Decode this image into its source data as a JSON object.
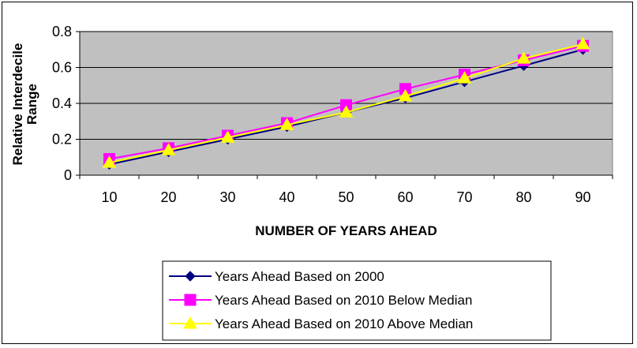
{
  "chart_data": {
    "type": "line",
    "xlabel": "NUMBER OF YEARS AHEAD",
    "ylabel": "Relative Interdecile Range",
    "categories": [
      "10",
      "20",
      "30",
      "40",
      "50",
      "60",
      "70",
      "80",
      "90"
    ],
    "ylim": [
      0,
      0.8
    ],
    "yticks": [
      0,
      0.2,
      0.4,
      0.6,
      0.8
    ],
    "ytick_labels": [
      "0",
      "0.2",
      "0.4",
      "0.6",
      "0.8"
    ],
    "plot_background": "#c0c0c0",
    "grid": "horizontal",
    "legend_position": "bottom",
    "series": [
      {
        "name": "Years Ahead Based on 2000",
        "color": "#000080",
        "marker": "diamond",
        "values": [
          0.06,
          0.13,
          0.2,
          0.27,
          0.35,
          0.43,
          0.52,
          0.61,
          0.7
        ]
      },
      {
        "name": "Years Ahead Based on 2010 Below Median",
        "color": "#ff00ff",
        "marker": "square",
        "values": [
          0.09,
          0.15,
          0.22,
          0.29,
          0.39,
          0.48,
          0.56,
          0.64,
          0.72
        ]
      },
      {
        "name": "Years Ahead Based on 2010 Above Median",
        "color": "#ffff00",
        "marker": "triangle",
        "values": [
          0.07,
          0.14,
          0.21,
          0.28,
          0.35,
          0.44,
          0.54,
          0.65,
          0.73
        ]
      }
    ]
  }
}
